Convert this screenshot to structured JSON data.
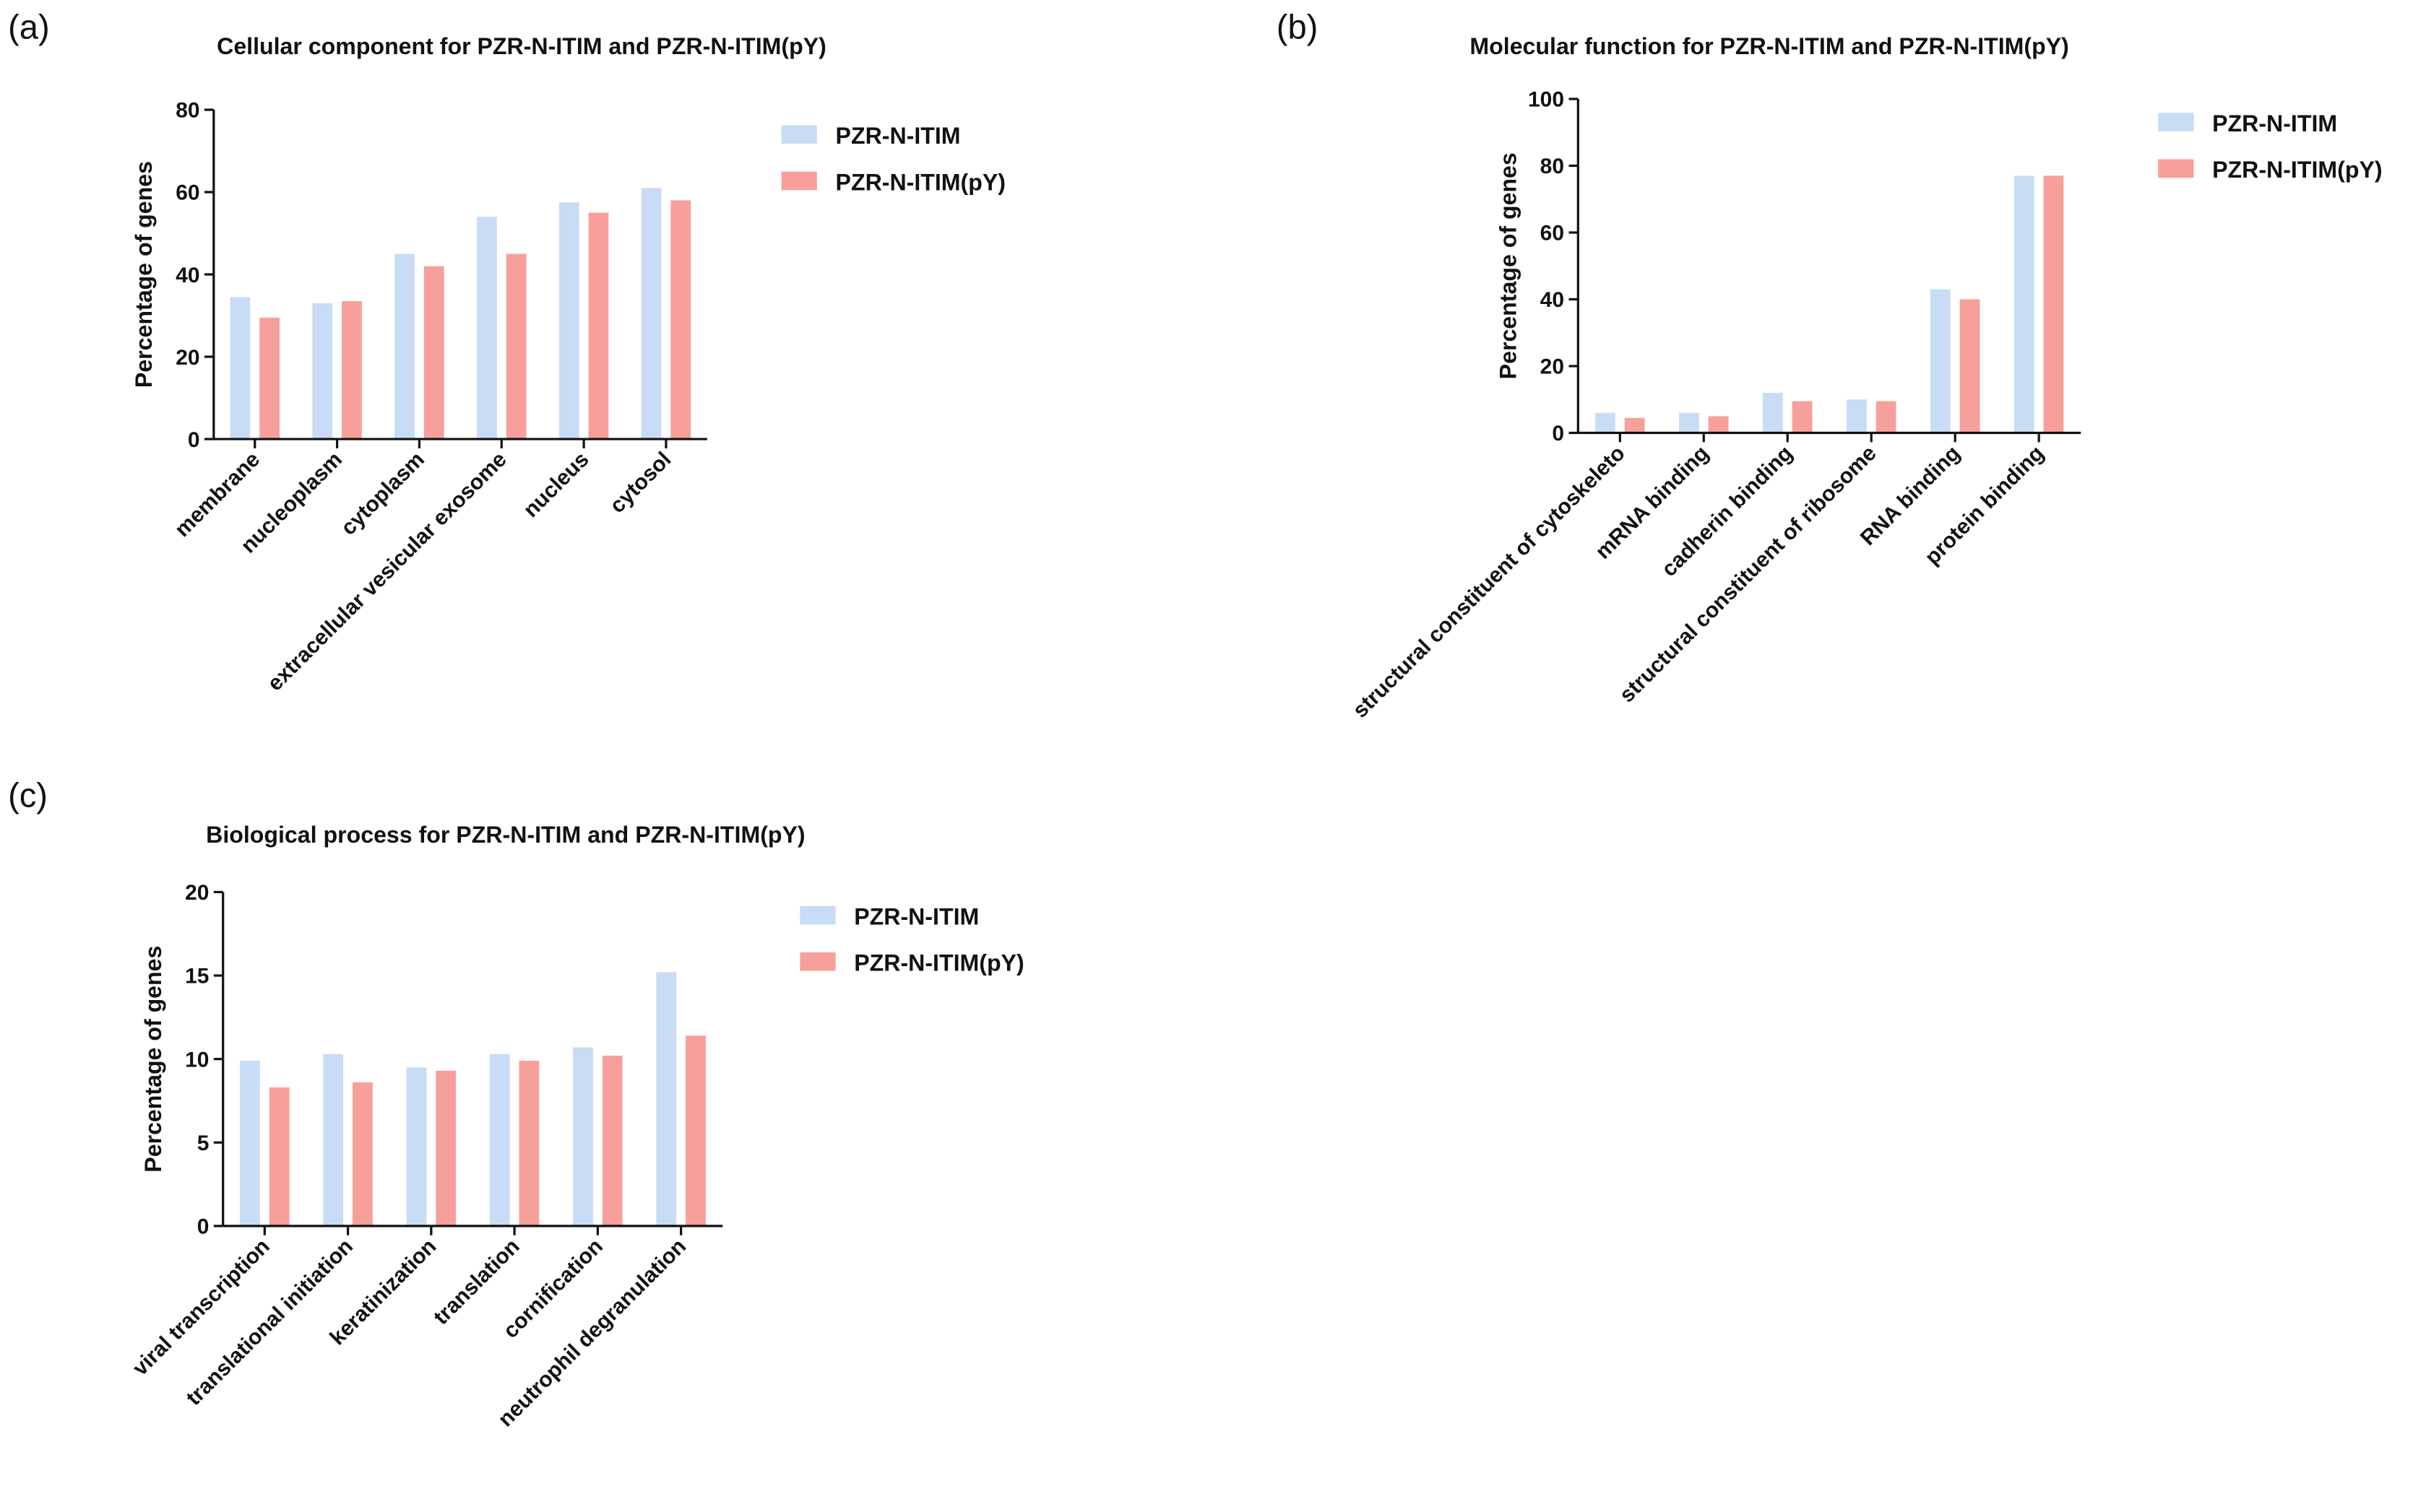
{
  "chart_data": [
    {
      "type": "bar",
      "panel": "(a)",
      "title": "Cellular component for PZR-N-ITIM and PZR-N-ITIM(pY)",
      "y_label": "Percentage of genes",
      "categories": [
        "membrane",
        "nucleoplasm",
        "cytoplasm",
        "extracellular vesicular exosome",
        "nucleus",
        "cytosol"
      ],
      "series": [
        {
          "name": "PZR-N-ITIM",
          "color": "#c9dcf5",
          "values": [
            34.5,
            33,
            45,
            54,
            57.5,
            61
          ]
        },
        {
          "name": "PZR-N-ITIM(pY)",
          "color": "#f7a09b",
          "values": [
            29.5,
            33.5,
            42,
            45,
            55,
            58
          ]
        }
      ],
      "ylim": [
        0,
        80
      ],
      "yticks": [
        0,
        20,
        40,
        60,
        80
      ]
    },
    {
      "type": "bar",
      "panel": "(b)",
      "title": "Molecular function for PZR-N-ITIM and PZR-N-ITIM(pY)",
      "y_label": "Percentage of genes",
      "categories": [
        "structural constituent of cytoskeleto",
        "mRNA binding",
        "cadherin binding",
        "structural constituent of ribosome",
        "RNA binding",
        "protein binding"
      ],
      "series": [
        {
          "name": "PZR-N-ITIM",
          "color": "#c9dcf5",
          "values": [
            6,
            6,
            12,
            10,
            43,
            77
          ]
        },
        {
          "name": "PZR-N-ITIM(pY)",
          "color": "#f7a09b",
          "values": [
            4.5,
            5,
            9.5,
            9.5,
            40,
            77
          ]
        }
      ],
      "ylim": [
        0,
        100
      ],
      "yticks": [
        0,
        20,
        40,
        60,
        80,
        100
      ]
    },
    {
      "type": "bar",
      "panel": "(c)",
      "title": "Biological process for PZR-N-ITIM and PZR-N-ITIM(pY)",
      "y_label": "Percentage of genes",
      "categories": [
        "viral transcription",
        "translational initiation",
        "keratinization",
        "translation",
        "cornification",
        "neutrophil degranulation"
      ],
      "series": [
        {
          "name": "PZR-N-ITIM",
          "color": "#c9dcf5",
          "values": [
            9.9,
            10.3,
            9.5,
            10.3,
            10.7,
            15.2
          ]
        },
        {
          "name": "PZR-N-ITIM(pY)",
          "color": "#f7a09b",
          "values": [
            8.3,
            8.6,
            9.3,
            9.9,
            10.2,
            11.4
          ]
        }
      ],
      "ylim": [
        0,
        20
      ],
      "yticks": [
        0,
        5,
        10,
        15,
        20
      ]
    }
  ]
}
